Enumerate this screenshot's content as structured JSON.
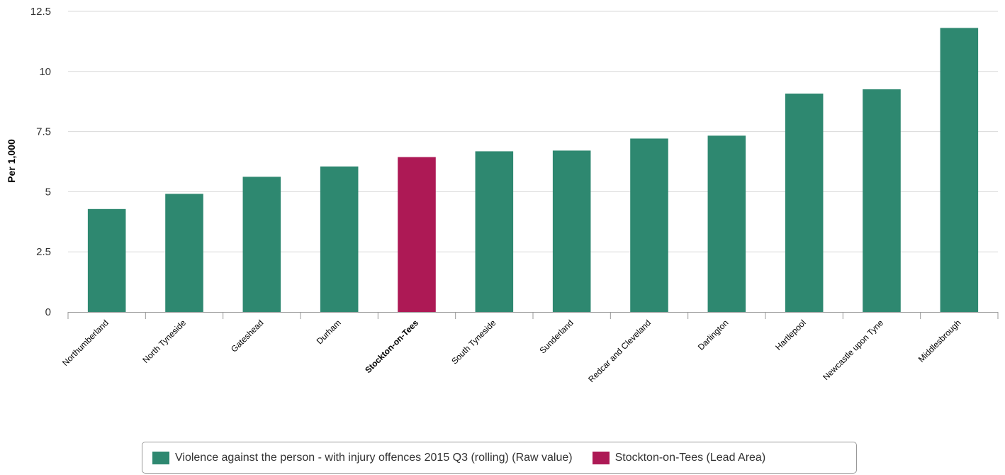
{
  "chart_data": {
    "type": "bar",
    "ylabel": "Per 1,000",
    "xlabel": "",
    "ylim": [
      0,
      12.5
    ],
    "yticks": [
      0,
      2.5,
      5,
      7.5,
      10,
      12.5
    ],
    "ytick_labels": [
      "0",
      "2.5",
      "5",
      "7.5",
      "10",
      "12.5"
    ],
    "grid": true,
    "categories": [
      "Northumberland",
      "North Tyneside",
      "Gateshead",
      "Durham",
      "Stockton-on-Tees",
      "South Tyneside",
      "Sunderland",
      "Redcar and Cleveland",
      "Darlington",
      "Hartlepool",
      "Newcastle upon Tyne",
      "Middlesbrough"
    ],
    "values": [
      4.28,
      4.91,
      5.62,
      6.05,
      6.44,
      6.68,
      6.71,
      7.21,
      7.33,
      9.08,
      9.26,
      11.81
    ],
    "highlight_category": "Stockton-on-Tees",
    "colors": {
      "series": "#2e8870",
      "highlight": "#ad1955",
      "grid": "#d9d9d9",
      "axis": "#999999"
    },
    "legend": {
      "position": "bottom",
      "items": [
        {
          "label": "Violence against the person - with injury offences 2015 Q3 (rolling) (Raw value)",
          "color": "#2e8870"
        },
        {
          "label": "Stockton-on-Tees (Lead Area)",
          "color": "#ad1955"
        }
      ]
    }
  }
}
